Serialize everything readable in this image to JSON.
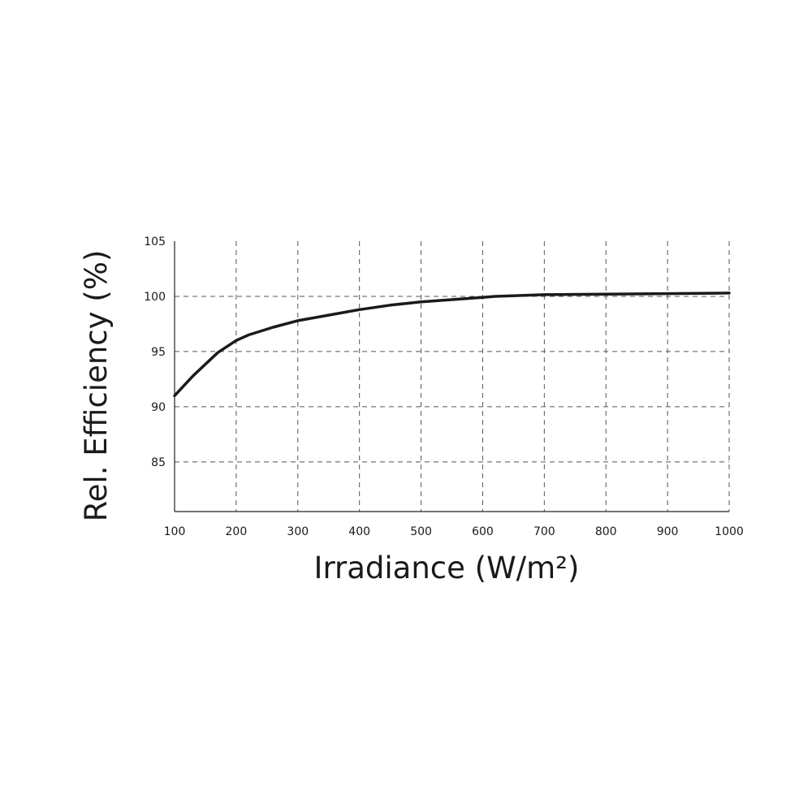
{
  "chart_data": {
    "type": "line",
    "xlabel": "Irradiance (W/m²)",
    "ylabel": "Rel. Efficiency (%)",
    "xlim": [
      100,
      1000
    ],
    "ylim": [
      80.5,
      105
    ],
    "x_ticks": [
      100,
      200,
      300,
      400,
      500,
      600,
      700,
      800,
      900,
      1000
    ],
    "y_ticks": [
      85,
      90,
      95,
      100,
      105
    ],
    "grid": true,
    "series": [
      {
        "color": "#1a1a1a",
        "x": [
          100,
          130,
          170,
          200,
          220,
          260,
          300,
          350,
          400,
          450,
          500,
          550,
          600,
          620,
          700,
          800,
          900,
          1000
        ],
        "y": [
          91.0,
          92.8,
          94.9,
          96.0,
          96.5,
          97.2,
          97.8,
          98.3,
          98.8,
          99.2,
          99.5,
          99.7,
          99.9,
          100.0,
          100.15,
          100.2,
          100.25,
          100.3
        ]
      }
    ]
  }
}
